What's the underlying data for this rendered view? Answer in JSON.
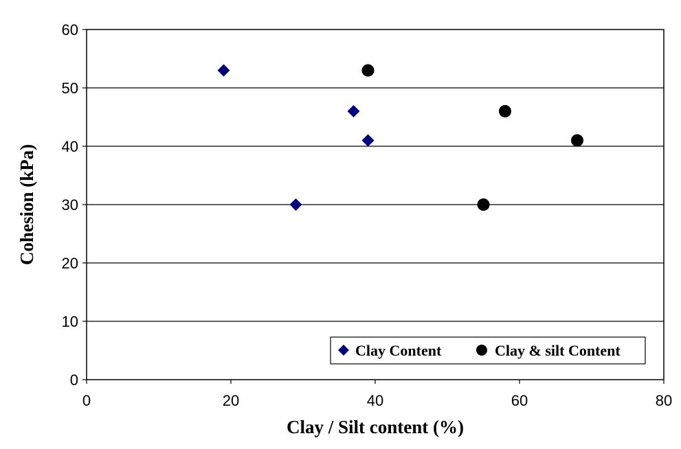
{
  "chart_data": {
    "type": "scatter",
    "title": "",
    "xlabel": "Clay / Silt content (%)",
    "ylabel": "Cohesion (kPa)",
    "xlim": [
      0,
      80
    ],
    "ylim": [
      0,
      60
    ],
    "x_ticks": [
      "0",
      "20",
      "40",
      "60",
      "80"
    ],
    "y_ticks": [
      "0",
      "10",
      "20",
      "30",
      "40",
      "50",
      "60"
    ],
    "grid": "horizontal",
    "legend_position": "bottom-right",
    "series": [
      {
        "name": "Clay Content",
        "marker": "diamond",
        "color": "#000080",
        "points": [
          {
            "x": 19,
            "y": 53
          },
          {
            "x": 29,
            "y": 30
          },
          {
            "x": 37,
            "y": 46
          },
          {
            "x": 39,
            "y": 41
          }
        ]
      },
      {
        "name": "Clay & silt Content",
        "marker": "circle",
        "color": "#000000",
        "points": [
          {
            "x": 39,
            "y": 53
          },
          {
            "x": 55,
            "y": 30
          },
          {
            "x": 58,
            "y": 46
          },
          {
            "x": 68,
            "y": 41
          }
        ]
      }
    ]
  }
}
